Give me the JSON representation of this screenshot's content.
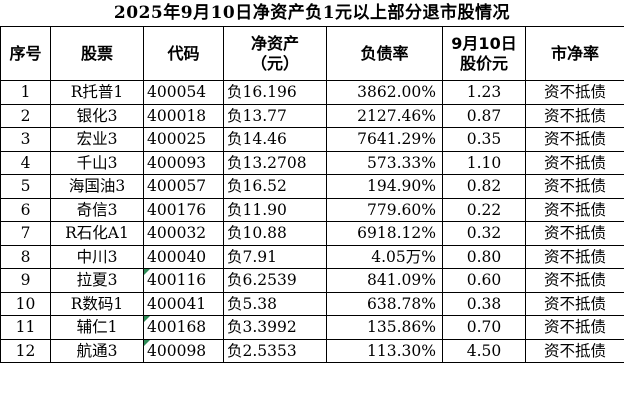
{
  "title": "2025年9月10日净资产负1元以上部分退市股情况",
  "headers": {
    "index": "序号",
    "stock": "股票",
    "code": "代码",
    "nav_line1": "净资产",
    "nav_line2": "（元）",
    "debt_ratio": "负债率",
    "price_line1": "9月10日",
    "price_line2": "股价元",
    "pb": "市净率"
  },
  "rows": [
    {
      "index": "1",
      "stock": "R托普1",
      "code": "400054",
      "nav": "负16.196",
      "debt_ratio": "3862.00%",
      "price": "1.23",
      "pb": "资不抵债",
      "marker": false
    },
    {
      "index": "2",
      "stock": "银化3",
      "code": "400018",
      "nav": "负13.77",
      "debt_ratio": "2127.46%",
      "price": "0.87",
      "pb": "资不抵债",
      "marker": false
    },
    {
      "index": "3",
      "stock": "宏业3",
      "code": "400025",
      "nav": "负14.46",
      "debt_ratio": "7641.29%",
      "price": "0.35",
      "pb": "资不抵债",
      "marker": false
    },
    {
      "index": "4",
      "stock": "千山3",
      "code": "400093",
      "nav": "负13.2708",
      "debt_ratio": "573.33%",
      "price": "1.10",
      "pb": "资不抵债",
      "marker": false
    },
    {
      "index": "5",
      "stock": "海国油3",
      "code": "400057",
      "nav": "负16.52",
      "debt_ratio": "194.90%",
      "price": "0.82",
      "pb": "资不抵债",
      "marker": false
    },
    {
      "index": "6",
      "stock": "奇信3",
      "code": "400176",
      "nav": "负11.90",
      "debt_ratio": "779.60%",
      "price": "0.22",
      "pb": "资不抵债",
      "marker": false
    },
    {
      "index": "7",
      "stock": "R石化A1",
      "code": "400032",
      "nav": "负10.88",
      "debt_ratio": "6918.12%",
      "price": "0.32",
      "pb": "资不抵债",
      "marker": false
    },
    {
      "index": "8",
      "stock": "中川3",
      "code": "400040",
      "nav": "负7.91",
      "debt_ratio": "4.05万%",
      "price": "0.80",
      "pb": "资不抵债",
      "marker": false
    },
    {
      "index": "9",
      "stock": "拉夏3",
      "code": "400116",
      "nav": "负6.2539",
      "debt_ratio": "841.09%",
      "price": "0.60",
      "pb": "资不抵债",
      "marker": true
    },
    {
      "index": "10",
      "stock": "R数码1",
      "code": "400041",
      "nav": "负5.38",
      "debt_ratio": "638.78%",
      "price": "0.38",
      "pb": "资不抵债",
      "marker": false
    },
    {
      "index": "11",
      "stock": "辅仁1",
      "code": "400168",
      "nav": "负3.3992",
      "debt_ratio": "135.86%",
      "price": "0.70",
      "pb": "资不抵债",
      "marker": true
    },
    {
      "index": "12",
      "stock": "航通3",
      "code": "400098",
      "nav": "负2.5353",
      "debt_ratio": "113.30%",
      "price": "4.50",
      "pb": "资不抵债",
      "marker": true
    }
  ]
}
